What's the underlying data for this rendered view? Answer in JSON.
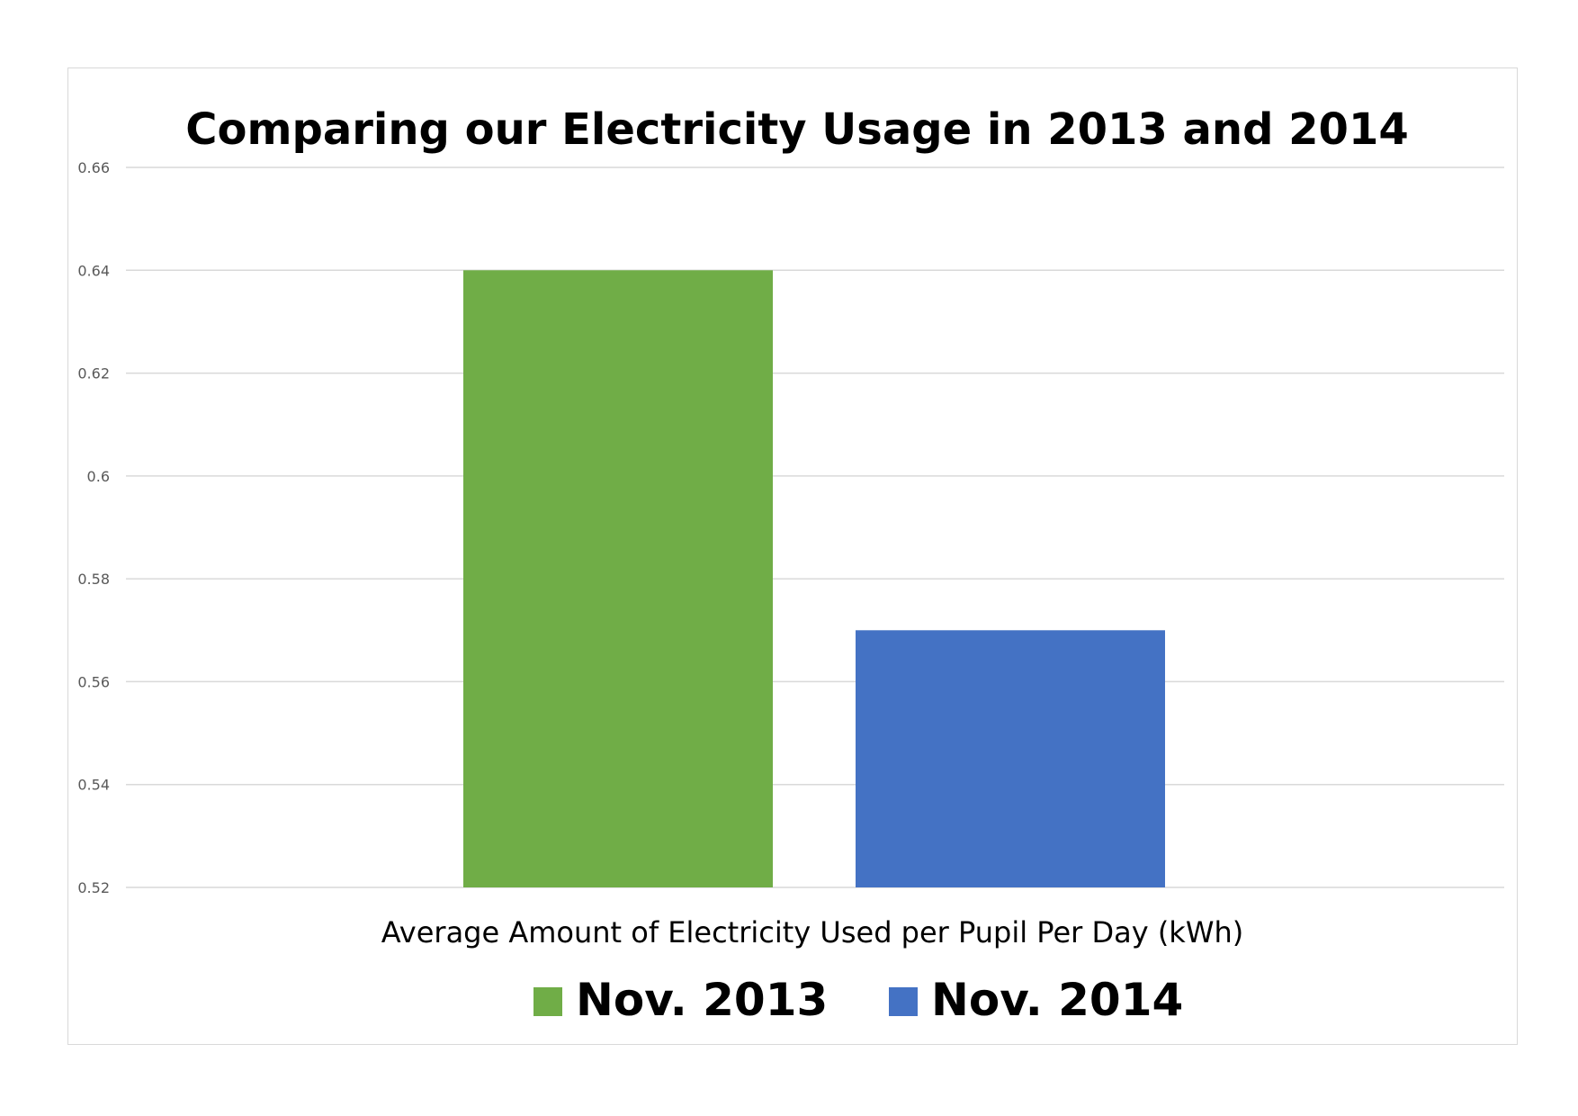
{
  "chart_data": {
    "type": "bar",
    "title": "Comparing our Electricity Usage in 2013 and 2014",
    "xlabel": "Average Amount of Electricity Used per Pupil Per Day (kWh)",
    "ylabel": "",
    "ylim": [
      0.52,
      0.66
    ],
    "yticks": [
      "0.66",
      "0.64",
      "0.62",
      "0.6",
      "0.58",
      "0.56",
      "0.54",
      "0.52"
    ],
    "grid": true,
    "legend_position": "bottom",
    "series": [
      {
        "name": "Nov. 2013",
        "value": 0.64,
        "color": "#70ad47"
      },
      {
        "name": "Nov. 2014",
        "value": 0.57,
        "color": "#4472c4"
      }
    ]
  }
}
